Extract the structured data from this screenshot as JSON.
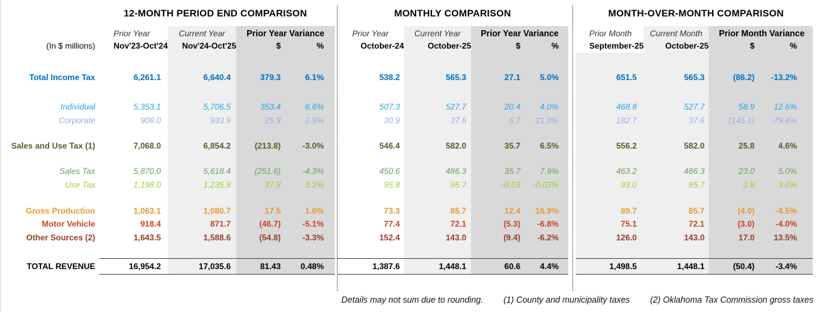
{
  "report": {
    "unit_label": "(In $ millions)",
    "sections": [
      {
        "title": "12-MONTH PERIOD END COMPARISON",
        "prior_head": "Prior Year",
        "prior_sub": "Nov'23-Oct'24",
        "current_head": "Current Year",
        "current_sub": "Nov'24-Oct'25",
        "variance_head": "Prior Year Variance",
        "dollar_head": "$",
        "percent_head": "%"
      },
      {
        "title": "MONTHLY COMPARISON",
        "prior_head": "Prior Year",
        "prior_sub": "October-24",
        "current_head": "Current Year",
        "current_sub": "October-25",
        "variance_head": "Prior Year Variance",
        "dollar_head": "$",
        "percent_head": "%"
      },
      {
        "title": "MONTH-OVER-MONTH COMPARISON",
        "prior_head": "Prior Month",
        "prior_sub": "September-25",
        "current_head": "Current Month",
        "current_sub": "October-25",
        "variance_head": "Prior Month Variance",
        "dollar_head": "$",
        "percent_head": "%"
      }
    ],
    "rows": [
      {
        "label": "Total Income Tax",
        "kind": "main",
        "color": "#0070C0",
        "sections": [
          [
            "6,261.1",
            "6,640.4",
            "379.3",
            "6.1%"
          ],
          [
            "538.2",
            "565.3",
            "27.1",
            "5.0%"
          ],
          [
            "651.5",
            "565.3",
            "(86.2)",
            "-13.2%"
          ]
        ]
      },
      {
        "label": "Individual",
        "kind": "sub",
        "color": "#2DA4DF",
        "sections": [
          [
            "5,353.1",
            "5,706.5",
            "353.4",
            "6.6%"
          ],
          [
            "507.3",
            "527.7",
            "20.4",
            "4.0%"
          ],
          [
            "468.8",
            "527.7",
            "58.9",
            "12.6%"
          ]
        ]
      },
      {
        "label": "Corporate",
        "kind": "sub",
        "color": "#9AAEDE",
        "sections": [
          [
            "908.0",
            "933.9",
            "25.9",
            "2.9%"
          ],
          [
            "30.9",
            "37.6",
            "6.7",
            "21.8%"
          ],
          [
            "182.7",
            "37.6",
            "(145.1)",
            "-79.4%"
          ]
        ]
      },
      {
        "label": "Sales and Use Tax (1)",
        "kind": "main",
        "color": "#4F6228",
        "sections": [
          [
            "7,068.0",
            "6,854.2",
            "(213.8)",
            "-3.0%"
          ],
          [
            "546.4",
            "582.0",
            "35.7",
            "6.5%"
          ],
          [
            "556.2",
            "582.0",
            "25.8",
            "4.6%"
          ]
        ]
      },
      {
        "label": "Sales Tax",
        "kind": "sub",
        "color": "#6CA05E",
        "sections": [
          [
            "5,870.0",
            "5,618.4",
            "(251.6)",
            "-4.3%"
          ],
          [
            "450.6",
            "486.3",
            "35.7",
            "7.9%"
          ],
          [
            "463.2",
            "486.3",
            "23.0",
            "5.0%"
          ]
        ]
      },
      {
        "label": "Use Tax",
        "kind": "sub",
        "color": "#9CCD3A",
        "sections": [
          [
            "1,198.0",
            "1,235.8",
            "37.8",
            "3.2%"
          ],
          [
            "95.8",
            "95.7",
            "-0.03",
            "-0.03%"
          ],
          [
            "93.0",
            "95.7",
            "2.8",
            "3.0%"
          ]
        ]
      },
      {
        "label": "Gross Production",
        "kind": "main",
        "color": "#E69A33",
        "sections": [
          [
            "1,063.1",
            "1,080.7",
            "17.5",
            "1.6%"
          ],
          [
            "73.3",
            "85.7",
            "12.4",
            "16.9%"
          ],
          [
            "89.7",
            "85.7",
            "(4.0)",
            "-4.5%"
          ]
        ]
      },
      {
        "label": "Motor Vehicle",
        "kind": "main",
        "color": "#CC4522",
        "sections": [
          [
            "918.4",
            "871.7",
            "(46.7)",
            "-5.1%"
          ],
          [
            "77.4",
            "72.1",
            "(5.3)",
            "-6.8%"
          ],
          [
            "75.1",
            "72.1",
            "(3.0)",
            "-4.0%"
          ]
        ]
      },
      {
        "label": "Other Sources (2)",
        "kind": "main",
        "color": "#96402A",
        "sections": [
          [
            "1,643.5",
            "1,588.6",
            "(54.8)",
            "-3.3%"
          ],
          [
            "152.4",
            "143.0",
            "(9.4)",
            "-6.2%"
          ],
          [
            "126.0",
            "143.0",
            "17.0",
            "13.5%"
          ]
        ]
      },
      {
        "label": "TOTAL REVENUE",
        "kind": "grand",
        "color": "#000000",
        "sections": [
          [
            "16,954.2",
            "17,035.6",
            "81.43",
            "0.48%"
          ],
          [
            "1,387.6",
            "1,448.1",
            "60.6",
            "4.4%"
          ],
          [
            "1,498.5",
            "1,448.1",
            "(50.4)",
            "-3.4%"
          ]
        ]
      }
    ],
    "footnotes": [
      "Details may not sum due to rounding.",
      "(1) County and municipality taxes",
      "(2) Oklahoma Tax Commission gross taxes"
    ],
    "colors": {
      "shade_light": "#efefef",
      "shade_dark": "#d9d9d9",
      "total_income_tax": "#0070C0",
      "individual": "#2DA4DF",
      "corporate": "#9AAEDE",
      "sales_and_use_tax": "#4F6228",
      "sales_tax": "#6CA05E",
      "use_tax": "#9CCD3A",
      "gross_production": "#E69A33",
      "motor_vehicle": "#CC4522",
      "other_sources": "#96402A"
    }
  }
}
